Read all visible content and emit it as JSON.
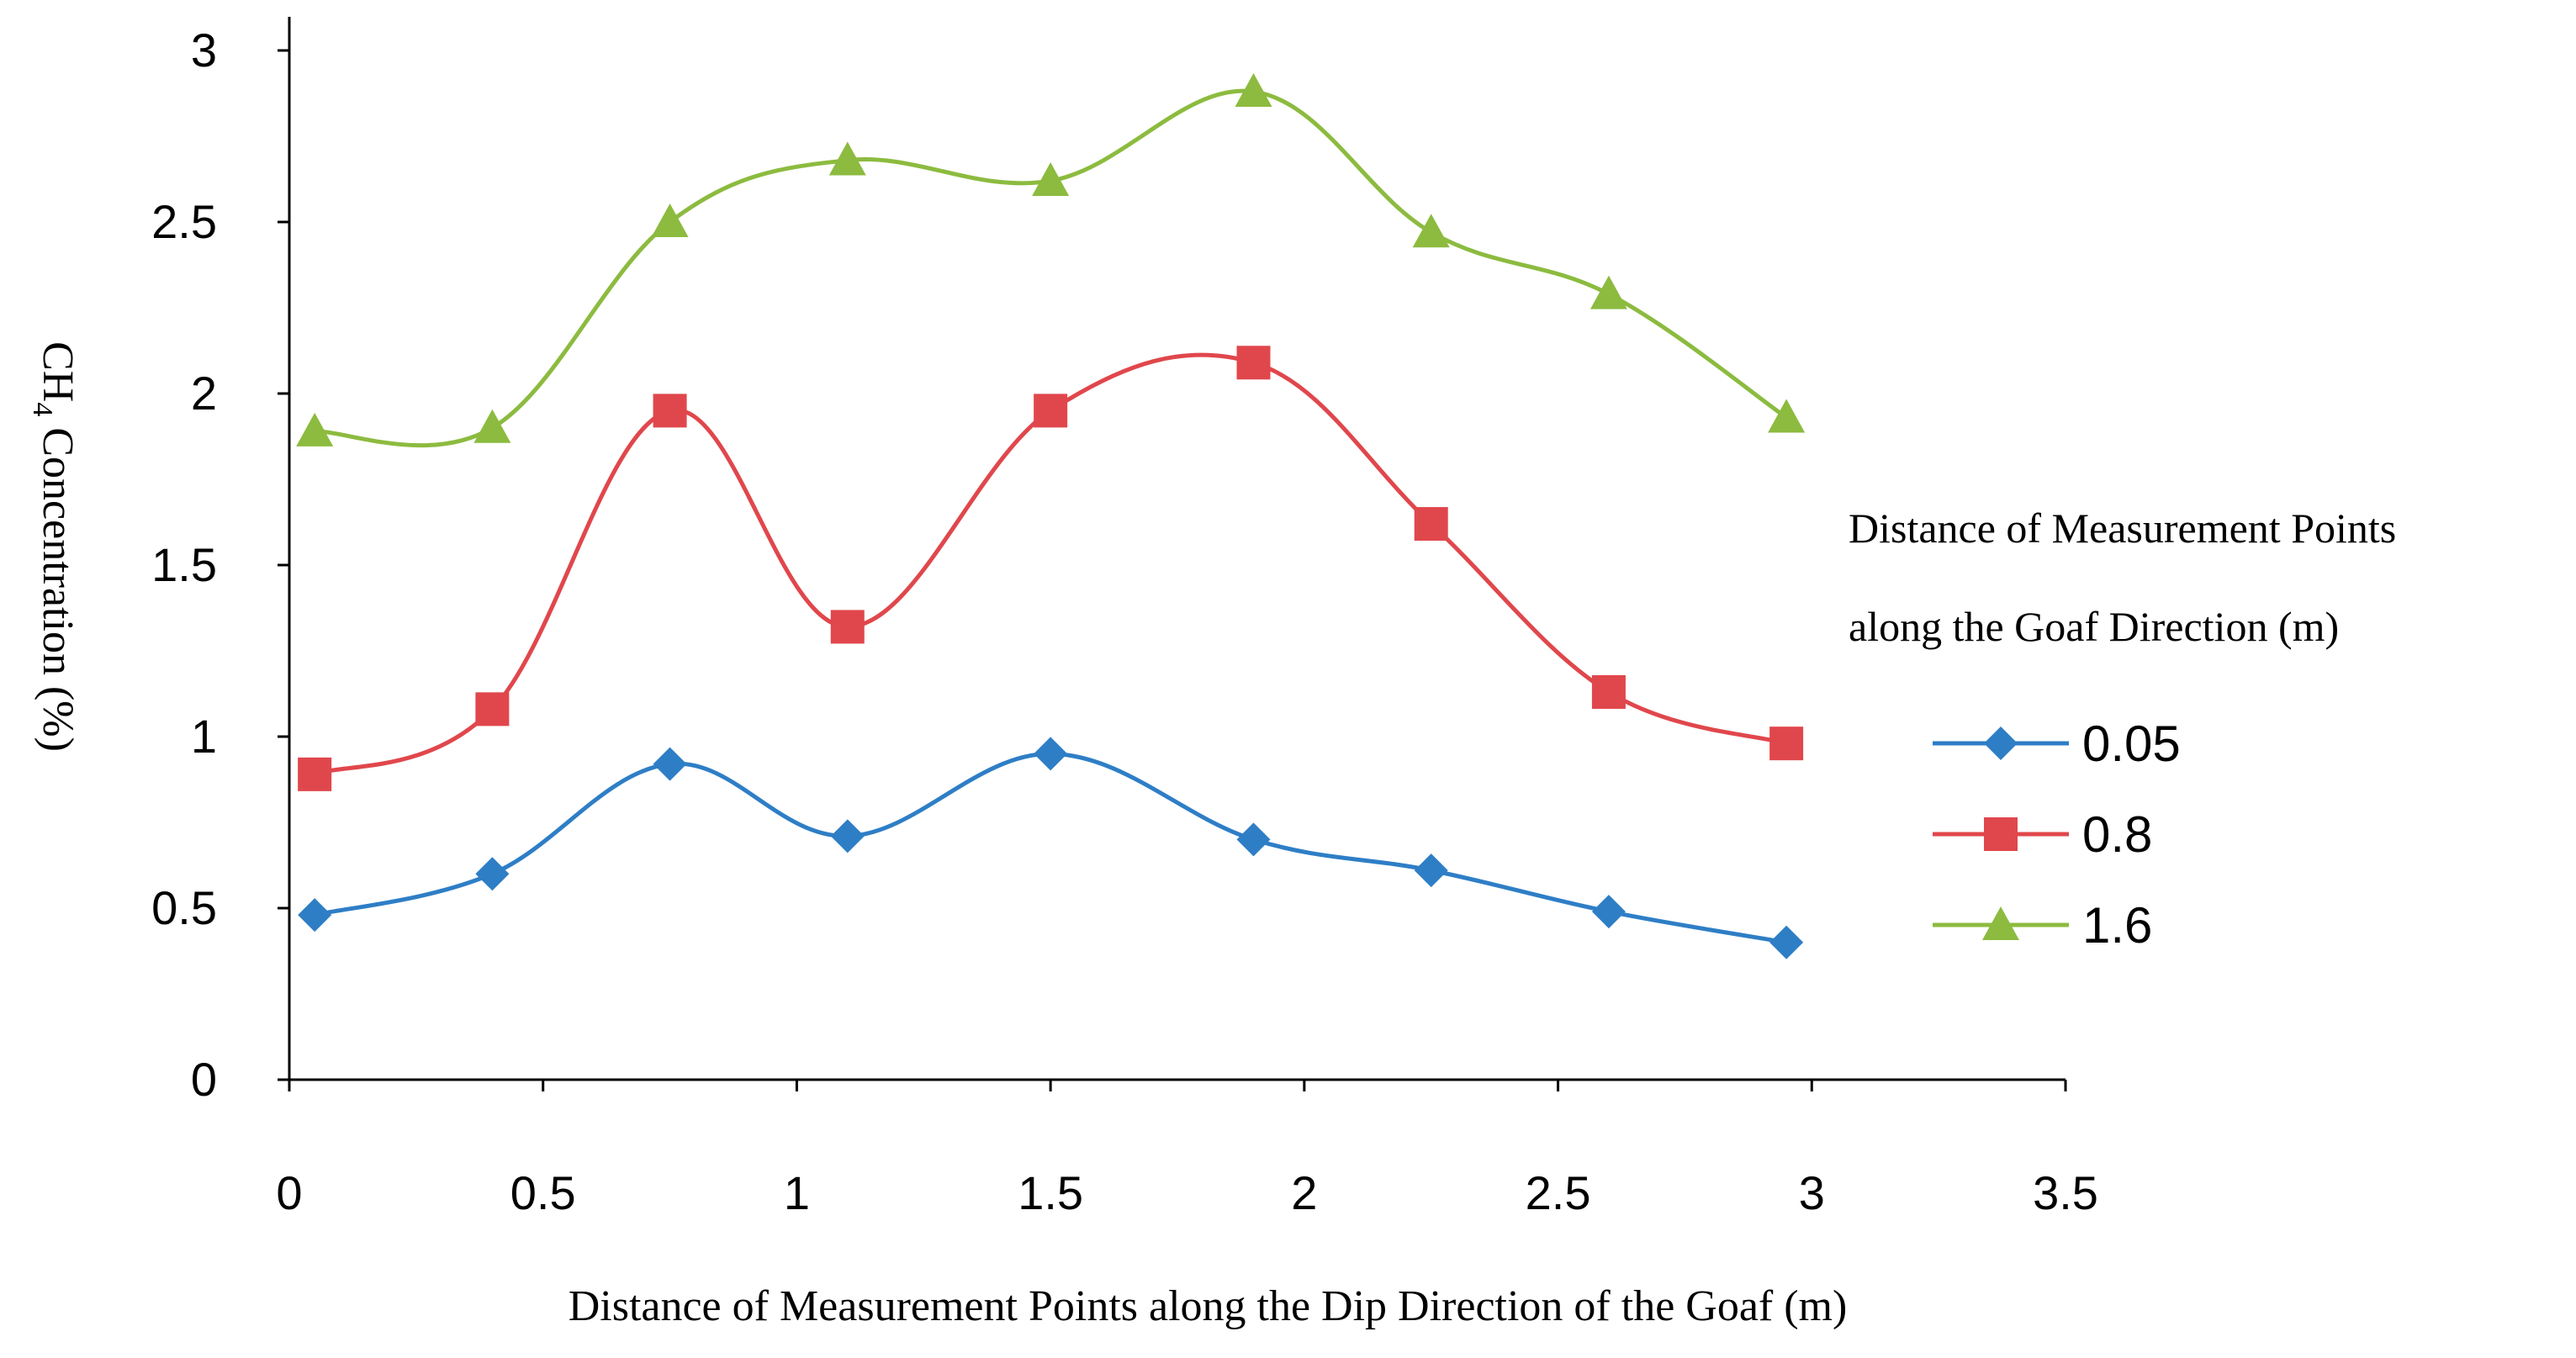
{
  "chart_data": {
    "type": "line",
    "title": "",
    "xlabel": "Distance of Measurement Points along the Dip Direction of the Goaf (m)",
    "ylabel": "CH4 Concentration (%)",
    "ylabel_main": "CH",
    "ylabel_sub": "4",
    "ylabel_rest": " Concentration (%)",
    "xlim": [
      0,
      3.5
    ],
    "ylim": [
      0,
      3
    ],
    "x_ticks": [
      0,
      0.5,
      1,
      1.5,
      2,
      2.5,
      3,
      3.5
    ],
    "x_tick_labels": [
      "0",
      "0.5",
      "1",
      "1.5",
      "2",
      "2.5",
      "3",
      "3.5"
    ],
    "y_ticks": [
      0,
      0.5,
      1,
      1.5,
      2,
      2.5,
      3
    ],
    "y_tick_labels": [
      "0",
      "0.5",
      "1",
      "1.5",
      "2",
      "2.5",
      "3"
    ],
    "grid": false,
    "legend_title_line1": "Distance of Measurement Points",
    "legend_title_line2": "along the Goaf Direction (m)",
    "legend_position": "right",
    "x": [
      0.05,
      0.4,
      0.75,
      1.1,
      1.5,
      1.9,
      2.25,
      2.6,
      2.95
    ],
    "series": [
      {
        "name": "0.05",
        "color": "#2e7ec6",
        "marker": "diamond",
        "values": [
          0.48,
          0.6,
          0.92,
          0.71,
          0.95,
          0.7,
          0.61,
          0.49,
          0.4
        ]
      },
      {
        "name": "0.8",
        "color": "#e0474c",
        "marker": "square",
        "values": [
          0.89,
          1.08,
          1.95,
          1.32,
          1.95,
          2.09,
          1.62,
          1.13,
          0.98
        ]
      },
      {
        "name": "1.6",
        "color": "#8cbb3f",
        "marker": "triangle",
        "values": [
          1.89,
          1.9,
          2.5,
          2.68,
          2.62,
          2.88,
          2.47,
          2.29,
          1.93
        ]
      }
    ]
  }
}
